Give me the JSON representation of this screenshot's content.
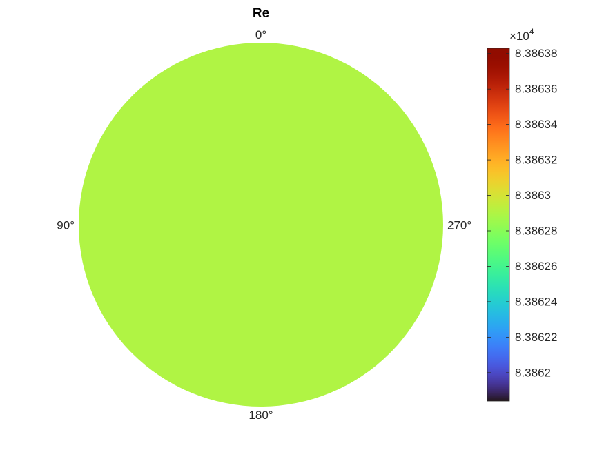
{
  "chart_data": {
    "type": "polar-surface",
    "title": "Re",
    "value": 8.38629,
    "colormap": "turbo",
    "angle_direction": "counterclockwise",
    "angle_zero": "top",
    "angle_ticks": [
      {
        "value": 0,
        "label": "0°"
      },
      {
        "value": 90,
        "label": "90°"
      },
      {
        "value": 180,
        "label": "180°"
      },
      {
        "value": 270,
        "label": "270°"
      }
    ],
    "colorbar": {
      "multiplier_base": "×10",
      "multiplier_exponent": "4",
      "clim": [
        8.386184,
        8.386383
      ],
      "ticks": [
        8.3862,
        8.38622,
        8.38624,
        8.38626,
        8.38628,
        8.3863,
        8.38632,
        8.38634,
        8.38636,
        8.38638
      ]
    }
  }
}
